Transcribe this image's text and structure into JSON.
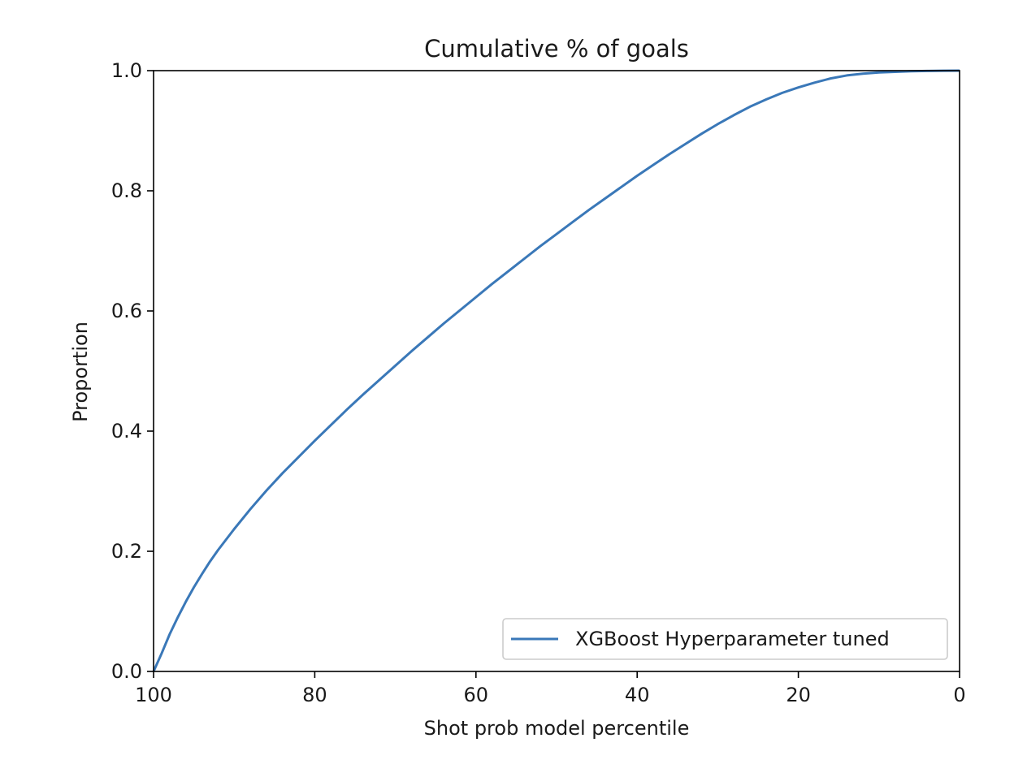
{
  "chart_data": {
    "type": "line",
    "title": "Cumulative % of goals",
    "xlabel": "Shot prob model percentile",
    "ylabel": "Proportion",
    "xlim": [
      100,
      0
    ],
    "ylim": [
      0.0,
      1.0
    ],
    "x_inverted": true,
    "grid": false,
    "legend_position": "lower right",
    "xticks": [
      100,
      80,
      60,
      40,
      20,
      0
    ],
    "xtick_labels": [
      "100",
      "80",
      "60",
      "40",
      "20",
      "0"
    ],
    "yticks": [
      0.0,
      0.2,
      0.4,
      0.6,
      0.8,
      1.0
    ],
    "ytick_labels": [
      "0.0",
      "0.2",
      "0.4",
      "0.6",
      "0.8",
      "1.0"
    ],
    "series": [
      {
        "name": "XGBoost Hyperparameter tuned",
        "color": "#3a78b8",
        "x": [
          100,
          99,
          98,
          97,
          96,
          95,
          94,
          93,
          92,
          90,
          88,
          86,
          84,
          82,
          80,
          78,
          76,
          74,
          72,
          70,
          68,
          66,
          64,
          62,
          60,
          58,
          56,
          54,
          52,
          50,
          48,
          46,
          44,
          42,
          40,
          38,
          36,
          34,
          32,
          30,
          28,
          26,
          24,
          22,
          20,
          18,
          16,
          14,
          12,
          10,
          8,
          6,
          4,
          2,
          0
        ],
        "y": [
          0.0,
          0.03,
          0.062,
          0.09,
          0.116,
          0.14,
          0.162,
          0.183,
          0.202,
          0.237,
          0.27,
          0.301,
          0.33,
          0.357,
          0.384,
          0.41,
          0.436,
          0.461,
          0.485,
          0.509,
          0.533,
          0.556,
          0.579,
          0.601,
          0.623,
          0.645,
          0.666,
          0.687,
          0.708,
          0.728,
          0.748,
          0.768,
          0.787,
          0.806,
          0.825,
          0.843,
          0.861,
          0.878,
          0.895,
          0.911,
          0.926,
          0.94,
          0.952,
          0.963,
          0.972,
          0.98,
          0.987,
          0.992,
          0.995,
          0.997,
          0.998,
          0.999,
          0.9995,
          0.9998,
          1.0
        ]
      }
    ]
  }
}
